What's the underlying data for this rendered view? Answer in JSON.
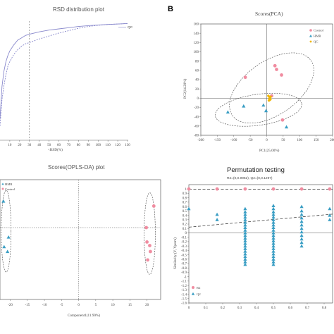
{
  "panel_letters": {
    "b": "B"
  },
  "colors": {
    "control": "#f08ca0",
    "hmr": "#3a9ec4",
    "qc": "#f0b500",
    "rsd_line": "#8888cc",
    "line_dark": "#555555"
  },
  "chart_data": [
    {
      "id": "rsd",
      "type": "line",
      "title": "RSD distribution plot",
      "xlabel": "<RSD(%)",
      "ylabel": "",
      "x_ticks": [
        "10",
        "20",
        "30",
        "40",
        "50",
        "60",
        "70",
        "80",
        "90",
        "100",
        "110",
        "120",
        "130"
      ],
      "xlim": [
        0,
        130
      ],
      "ylim": [
        0,
        1
      ],
      "reference_x": 30,
      "series": [
        {
          "name": "QC",
          "x": [
            0,
            2,
            4,
            6,
            8,
            10,
            14,
            18,
            22,
            26,
            30,
            40,
            50,
            60,
            70,
            80,
            90,
            100,
            110,
            120,
            130
          ],
          "y": [
            0.18,
            0.45,
            0.58,
            0.66,
            0.71,
            0.75,
            0.8,
            0.84,
            0.86,
            0.88,
            0.89,
            0.91,
            0.925,
            0.935,
            0.945,
            0.955,
            0.962,
            0.968,
            0.972,
            0.976,
            0.98
          ]
        },
        {
          "name": "",
          "x": [
            0,
            2,
            4,
            6,
            8,
            10,
            14,
            18,
            22,
            26,
            30,
            40,
            50,
            60,
            70,
            80,
            90,
            100,
            110,
            120,
            130
          ],
          "y": [
            0.12,
            0.34,
            0.46,
            0.55,
            0.62,
            0.66,
            0.72,
            0.76,
            0.79,
            0.81,
            0.82,
            0.85,
            0.875,
            0.9,
            0.92,
            0.94,
            0.955,
            0.965,
            0.972,
            0.976,
            0.98
          ]
        }
      ]
    },
    {
      "id": "pca",
      "type": "scatter",
      "title": "Scores(PCA)",
      "xlabel": "PC1(25.00%)",
      "ylabel": "PC2(14.20%)",
      "xlim": [
        -200,
        200
      ],
      "ylim": [
        -80,
        160
      ],
      "x_ticks": [
        "-200",
        "-150",
        "-100",
        "-50",
        "0",
        "50",
        "100",
        "150",
        "200"
      ],
      "y_ticks": [
        "-80",
        "-60",
        "-40",
        "-20",
        "0",
        "20",
        "40",
        "60",
        "80",
        "100",
        "120",
        "140",
        "160"
      ],
      "legend": {
        "position": "top-right",
        "entries": [
          "Control",
          "HMR",
          "QC"
        ]
      },
      "series": [
        {
          "name": "Control",
          "marker": "circle",
          "x": [
            -65,
            25,
            30,
            45,
            15,
            48
          ],
          "y": [
            45,
            70,
            62,
            50,
            5,
            -47
          ]
        },
        {
          "name": "HMR",
          "marker": "triangle",
          "x": [
            -118,
            -70,
            -10,
            -2,
            60
          ],
          "y": [
            -30,
            -17,
            -15,
            -27,
            -62
          ]
        },
        {
          "name": "QC",
          "marker": "diamond",
          "x": [
            5,
            8,
            10,
            12,
            7,
            9,
            11
          ],
          "y": [
            5,
            -2,
            0,
            3,
            -5,
            2,
            -3
          ]
        }
      ]
    },
    {
      "id": "oplsda",
      "type": "scatter",
      "title": "Scores(OPLS-DA) plot",
      "xlabel": "Component1(11.90%)",
      "xlim": [
        -23,
        24
      ],
      "x_ticks": [
        "-20",
        "-15",
        "-10",
        "-5",
        "0",
        "5",
        "10",
        "15",
        "20"
      ],
      "legend": {
        "position": "top-left",
        "entries": [
          "HMR",
          "Control"
        ]
      },
      "series": [
        {
          "name": "HMR",
          "marker": "triangle",
          "x": [
            -22,
            -20.5,
            -21.8,
            -20.8
          ],
          "y": [
            0.82,
            0.52,
            0.44,
            0.4
          ]
        },
        {
          "name": "Control",
          "marker": "circle",
          "x": [
            22,
            19.8,
            20.0,
            20.8,
            21.0,
            20.2
          ],
          "y": [
            0.78,
            0.6,
            0.48,
            0.45,
            0.4,
            0.33
          ]
        }
      ]
    },
    {
      "id": "perm",
      "type": "scatter",
      "title": "Permutation testing",
      "subtitle": "R2=(0,0.9962), Q2=(0,0.1297)",
      "xlabel": "",
      "ylabel": "Similarity (Y, Yperm)",
      "xlim": [
        0,
        0.85
      ],
      "ylim": [
        -1.6,
        1.1
      ],
      "x_ticks": [
        "0",
        "0.1",
        "0.2",
        "0.3",
        "0.4",
        "0.5",
        "0.6",
        "0.7",
        "0.8"
      ],
      "y_ticks": [
        "1",
        "0.9",
        "0.8",
        "0.7",
        "0.6",
        "0.5",
        "0.4",
        "0.3",
        "0.2",
        "0.1",
        "0",
        "-0.1",
        "-0.2",
        "-0.3",
        "-0.4",
        "-0.5",
        "-0.6",
        "-0.7",
        "-0.8",
        "-0.9",
        "-1",
        "-1.1",
        "-1.2",
        "-1.3",
        "-1.4",
        "-1.5",
        "-1.6"
      ],
      "legend": {
        "position": "bottom-left",
        "entries": [
          "R2",
          "Q2"
        ]
      },
      "r2_line": {
        "intercept": 0.9962,
        "slope": 0
      },
      "q2_line": {
        "intercept": 0.1297,
        "slope": 0.35
      },
      "r2_points": {
        "x": [
          0,
          0.167,
          0.333,
          0.5,
          0.667,
          0.833
        ],
        "y": [
          1,
          1,
          1,
          1,
          1,
          1
        ]
      },
      "q2_columns": [
        {
          "x": 0,
          "y": [
            0.55
          ]
        },
        {
          "x": 0.167,
          "y": [
            0.42,
            0.3
          ]
        },
        {
          "x": 0.333,
          "y": [
            0.55,
            0.48,
            0.42,
            0.36,
            0.3,
            0.24,
            0.18,
            0.12,
            0.06,
            0.0,
            -0.06,
            -0.12,
            -0.18,
            -0.24,
            -0.3,
            -0.36,
            -0.42,
            -0.48,
            -0.54,
            -0.6,
            -0.66,
            -0.72
          ]
        },
        {
          "x": 0.5,
          "y": [
            0.62,
            0.55,
            0.48,
            0.42,
            0.36,
            0.3,
            0.24,
            0.18,
            0.12,
            0.06,
            0.0,
            -0.06,
            -0.12,
            -0.18,
            -0.24,
            -0.3,
            -0.36,
            -0.42,
            -0.48,
            -0.54,
            -0.6,
            -0.66,
            -0.72
          ]
        },
        {
          "x": 0.667,
          "y": [
            0.6,
            0.5,
            0.42,
            0.34,
            0.26,
            0.18,
            0.1,
            0.02,
            -0.06,
            -0.14,
            -0.22,
            -0.3
          ]
        },
        {
          "x": 0.833,
          "y": [
            0.55,
            0.4,
            0.3
          ]
        }
      ]
    }
  ]
}
